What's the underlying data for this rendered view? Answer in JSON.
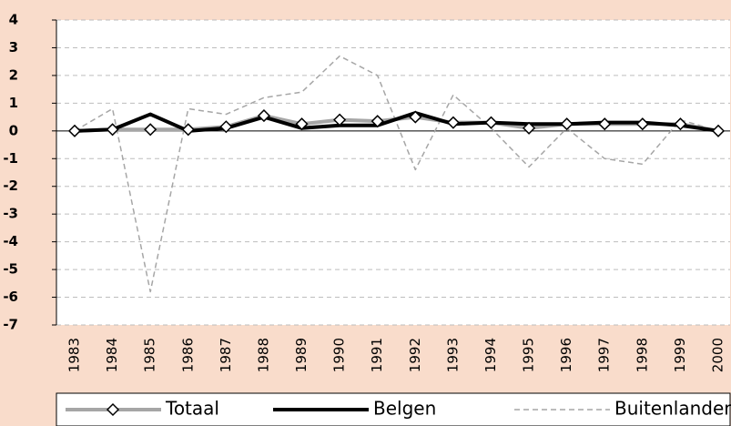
{
  "chart_data": {
    "type": "line",
    "categories": [
      "1983",
      "1984",
      "1985",
      "1986",
      "1987",
      "1988",
      "1989",
      "1990",
      "1991",
      "1992",
      "1993",
      "1994",
      "1995",
      "1996",
      "1997",
      "1998",
      "1999",
      "2000"
    ],
    "series": [
      {
        "name": "Totaal",
        "color": "#a6a6a6",
        "marker": "diamond",
        "dashed": false,
        "width": 4,
        "values": [
          0,
          0.05,
          0.05,
          0.05,
          0.15,
          0.55,
          0.25,
          0.4,
          0.35,
          0.5,
          0.3,
          0.3,
          0.1,
          0.25,
          0.25,
          0.25,
          0.25,
          0
        ]
      },
      {
        "name": "Belgen",
        "color": "#000000",
        "dashed": false,
        "width": 4,
        "values": [
          0,
          0.05,
          0.6,
          0,
          0.1,
          0.5,
          0.1,
          0.2,
          0.2,
          0.65,
          0.25,
          0.3,
          0.25,
          0.25,
          0.3,
          0.3,
          0.2,
          0
        ]
      },
      {
        "name": "Buitenlanders",
        "color": "#a6a6a6",
        "dashed": true,
        "width": 1.5,
        "values": [
          0,
          0.8,
          -5.8,
          0.8,
          0.6,
          1.2,
          1.4,
          2.7,
          2.0,
          -1.4,
          1.3,
          0.1,
          -1.3,
          0.1,
          -1.0,
          -1.2,
          0.4,
          0
        ]
      }
    ],
    "ylim": [
      -7,
      4
    ],
    "yticks": [
      -7,
      -6,
      -5,
      -4,
      -3,
      -2,
      -1,
      0,
      1,
      2,
      3,
      4
    ],
    "grid": true,
    "legend": "bottom"
  }
}
